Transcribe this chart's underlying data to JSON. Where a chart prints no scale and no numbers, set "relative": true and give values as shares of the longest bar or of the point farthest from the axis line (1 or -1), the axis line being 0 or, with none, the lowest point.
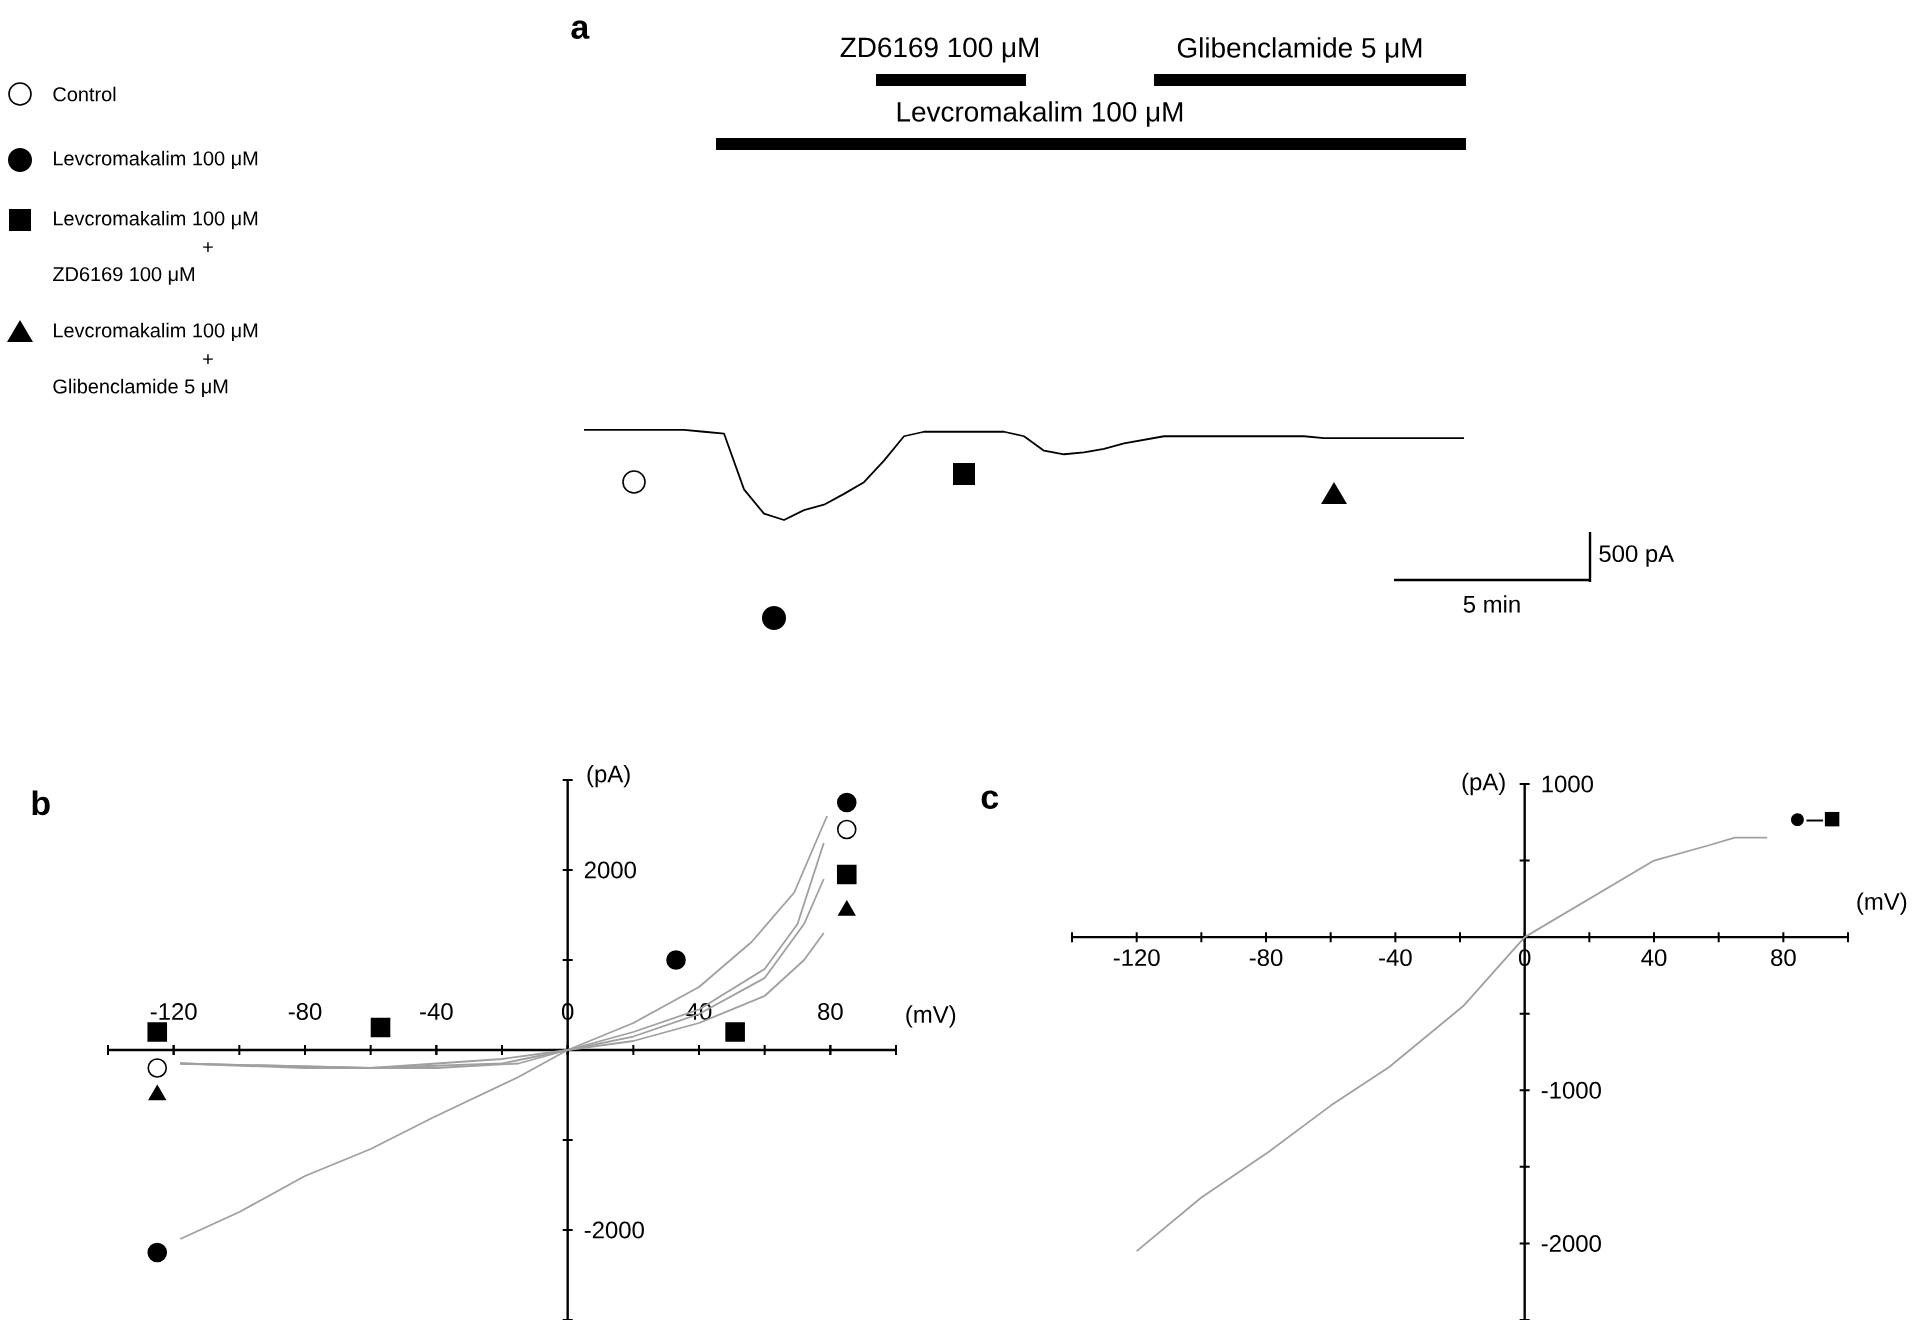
{
  "chart_data": [
    {
      "type": "line",
      "title": "a",
      "relative": true,
      "categories": [
        null,
        null,
        null,
        null,
        null,
        null,
        null,
        null,
        null,
        null,
        null,
        null,
        null,
        null,
        null,
        null,
        null,
        null,
        null,
        null,
        null,
        null,
        null,
        null,
        null,
        null,
        null,
        null,
        null,
        null,
        null,
        null,
        null,
        null,
        null,
        null,
        null,
        null,
        null,
        null,
        null,
        null,
        null,
        null,
        null
      ],
      "series": [
        {
          "color": "#000000",
          "values": [
            1,
            1,
            1,
            1,
            1,
            1,
            0.98,
            0.96,
            0.34,
            0.07,
            0,
            0.11,
            0.17,
            0.29,
            0.42,
            0.66,
            0.93,
            0.98,
            0.98,
            0.98,
            0.98,
            0.98,
            0.93,
            0.77,
            0.73,
            0.75,
            0.79,
            0.85,
            0.89,
            0.93,
            0.93,
            0.93,
            0.93,
            0.93,
            0.93,
            0.93,
            0.93,
            0.91,
            0.91,
            0.91,
            0.91,
            0.91,
            0.91,
            0.91,
            0.91
          ]
        }
      ],
      "annotations": [
        "ZD6169 100 μM",
        "Glibenclamide 5 μM",
        "Levcromakalim 100 μM",
        "Control",
        "Levcromakalim 100 μM",
        "Levcromakalim 100 μM",
        "+",
        "ZD6169 100 μM",
        "Levcromakalim 100 μM",
        "+",
        "Glibenclamide 5 μM",
        "500 pA",
        "5 min"
      ]
    },
    {
      "type": "line",
      "title": "b",
      "xlabel": "(mV)",
      "ylabel": "(pA)",
      "xlim": [
        -140,
        100
      ],
      "ylim": [
        -3000,
        3000
      ],
      "xticks": [
        {
          "value": -140,
          "label": null
        },
        -120,
        {
          "value": -100,
          "label": null
        },
        -80,
        {
          "value": -60,
          "label": null
        },
        -40,
        {
          "value": -20,
          "label": null
        },
        0,
        {
          "value": 20,
          "label": null
        },
        40,
        {
          "value": 60,
          "label": null
        },
        80,
        {
          "value": 100,
          "label": null
        }
      ],
      "yticks": [
        {
          "value": -3000,
          "label": null
        },
        -2000,
        {
          "value": -1000,
          "label": null
        },
        {
          "value": 1000,
          "label": null
        },
        2000,
        {
          "value": 3000,
          "label": null
        }
      ],
      "series": [
        {
          "color": "#a0a0a0",
          "x": [
            -118,
            -100,
            -80,
            -60,
            -41,
            -15,
            0,
            20,
            40,
            56,
            69,
            79
          ],
          "values": [
            -2100,
            -1800,
            -1400,
            -1100,
            -750,
            -300,
            0,
            300,
            700,
            1200,
            1750,
            2600
          ]
        },
        {
          "color": "#a0a0a0",
          "x": [
            -118,
            -80,
            -40,
            -15,
            0,
            20,
            40,
            60,
            70,
            78
          ],
          "values": [
            -150,
            -200,
            -200,
            -150,
            0,
            200,
            450,
            900,
            1400,
            2300
          ]
        },
        {
          "color": "#a0a0a0",
          "x": [
            -118,
            -60,
            -20,
            0,
            20,
            40,
            60,
            72,
            78
          ],
          "values": [
            -150,
            -200,
            -150,
            0,
            150,
            400,
            800,
            1400,
            1900
          ]
        },
        {
          "color": "#a0a0a0",
          "x": [
            -118,
            -60,
            -20,
            0,
            20,
            40,
            60,
            72,
            78
          ],
          "values": [
            -150,
            -200,
            -100,
            0,
            100,
            300,
            600,
            1000,
            1300
          ]
        },
        {
          "type": "scatter",
          "color": "#ffffff",
          "marker": "circle",
          "x": [
            -125,
            85
          ],
          "values": [
            -200,
            2450
          ]
        },
        {
          "type": "scatter",
          "color": "#000000",
          "marker": "circle",
          "x": [
            -125,
            33,
            85
          ],
          "values": [
            -2250,
            1000,
            2750
          ]
        },
        {
          "type": "scatter",
          "color": "#000000",
          "marker": "square",
          "x": [
            -125,
            -57,
            51,
            85
          ],
          "values": [
            200,
            250,
            200,
            1950
          ]
        },
        {
          "type": "scatter",
          "color": "#000000",
          "marker": "triangle",
          "x": [
            -125,
            85
          ],
          "values": [
            -500,
            1550
          ]
        }
      ]
    },
    {
      "type": "line",
      "title": "c",
      "xlabel": "(mV)",
      "ylabel": "(pA)",
      "xlim": [
        -140,
        100
      ],
      "ylim": [
        -2500,
        1000
      ],
      "xticks": [
        {
          "value": -140,
          "label": null
        },
        -120,
        {
          "value": -100,
          "label": null
        },
        -80,
        {
          "value": -60,
          "label": null
        },
        -40,
        {
          "value": -20,
          "label": null
        },
        0,
        {
          "value": 20,
          "label": null
        },
        40,
        {
          "value": 60,
          "label": null
        },
        80,
        {
          "value": 100,
          "label": null
        }
      ],
      "yticks": [
        {
          "value": -2500,
          "label": null
        },
        -2000,
        {
          "value": -1500,
          "label": null
        },
        -1000,
        {
          "value": -500,
          "label": null
        },
        {
          "value": 500,
          "label": null
        },
        1000
      ],
      "series": [
        {
          "color": "#a0a0a0",
          "x": [
            -120,
            -100,
            -79,
            -60,
            -42,
            -19,
            0,
            20,
            40,
            57,
            65,
            75
          ],
          "values": [
            -2050,
            -1700,
            -1400,
            -1100,
            -850,
            -450,
            0,
            250,
            500,
            600,
            650,
            650
          ]
        }
      ],
      "annotations": [
        "●–■"
      ]
    }
  ]
}
